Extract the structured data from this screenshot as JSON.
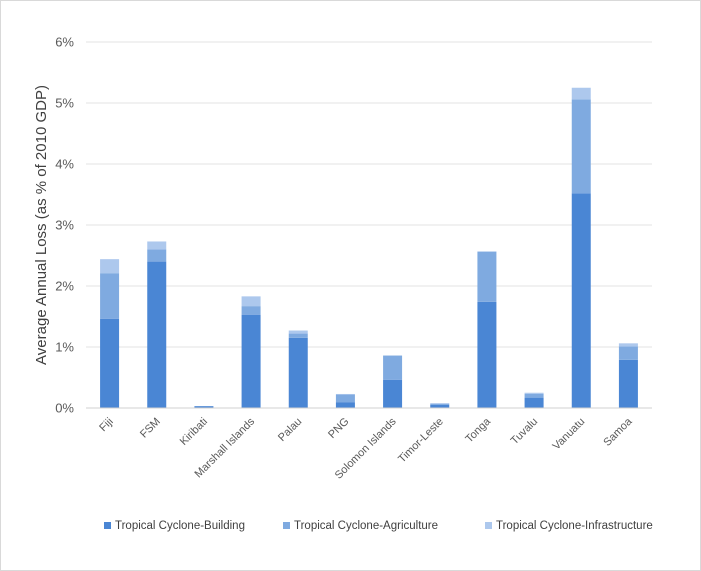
{
  "chart_data": {
    "type": "bar",
    "stacked": true,
    "title": "",
    "xlabel": "",
    "ylabel": "Average Annual Loss (as % of 2010 GDP)",
    "ylim": [
      0,
      6
    ],
    "yticks": [
      "0%",
      "1%",
      "2%",
      "3%",
      "4%",
      "5%",
      "6%"
    ],
    "grid": true,
    "legend_position": "bottom",
    "categories": [
      "Fiji",
      "FSM",
      "Kiribati",
      "Marshall Islands",
      "Palau",
      "PNG",
      "Solomon Islands",
      "Timor-Leste",
      "Tonga",
      "Tuvalu",
      "Vanuatu",
      "Samoa"
    ],
    "series": [
      {
        "name": "Tropical Cyclone-Building",
        "color": "#4a86d4",
        "values": [
          1.46,
          2.4,
          0.03,
          1.53,
          1.15,
          0.09,
          0.46,
          0.05,
          1.74,
          0.17,
          3.52,
          0.79
        ]
      },
      {
        "name": "Tropical Cyclone-Agriculture",
        "color": "#7faae0",
        "values": [
          0.75,
          0.2,
          0.0,
          0.14,
          0.07,
          0.13,
          0.4,
          0.02,
          0.82,
          0.06,
          1.54,
          0.22
        ]
      },
      {
        "name": "Tropical Cyclone-Infrastructure",
        "color": "#adc8ed",
        "values": [
          0.23,
          0.13,
          0.0,
          0.16,
          0.05,
          0.01,
          0.0,
          0.01,
          0.01,
          0.02,
          0.19,
          0.05
        ]
      }
    ]
  }
}
